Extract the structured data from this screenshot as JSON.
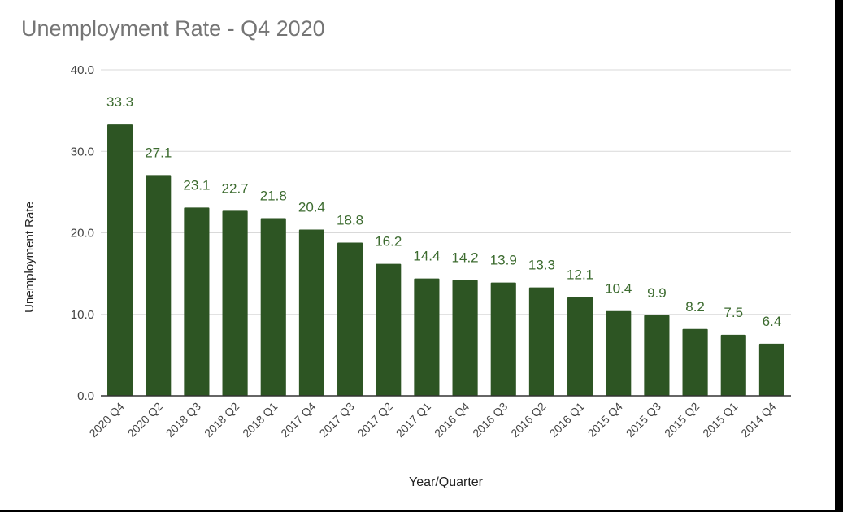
{
  "chart_data": {
    "type": "bar",
    "title": "Unemployment Rate - Q4 2020",
    "xlabel": "Year/Quarter",
    "ylabel": "Unemployment Rate",
    "ylim": [
      0,
      40
    ],
    "yticks": [
      "0.0",
      "10.0",
      "20.0",
      "30.0",
      "40.0"
    ],
    "categories": [
      "2020 Q4",
      "2020 Q2",
      "2018 Q3",
      "2018 Q2",
      "2018 Q1",
      "2017 Q4",
      "2017 Q3",
      "2017 Q2",
      "2017 Q1",
      "2016 Q4",
      "2016 Q3",
      "2016 Q2",
      "2016 Q1",
      "2015 Q4",
      "2015 Q3",
      "2015 Q2",
      "2015 Q1",
      "2014 Q4"
    ],
    "values": [
      33.3,
      27.1,
      23.1,
      22.7,
      21.8,
      20.4,
      18.8,
      16.2,
      14.4,
      14.2,
      13.9,
      13.3,
      12.1,
      10.4,
      9.9,
      8.2,
      7.5,
      6.4
    ],
    "grid": true,
    "legend": "none",
    "colors": {
      "bar": "#2d5523",
      "data_label": "#3c6b2f",
      "gridline": "#d9d9d9",
      "axis_text": "#444444",
      "title": "#757575"
    }
  }
}
